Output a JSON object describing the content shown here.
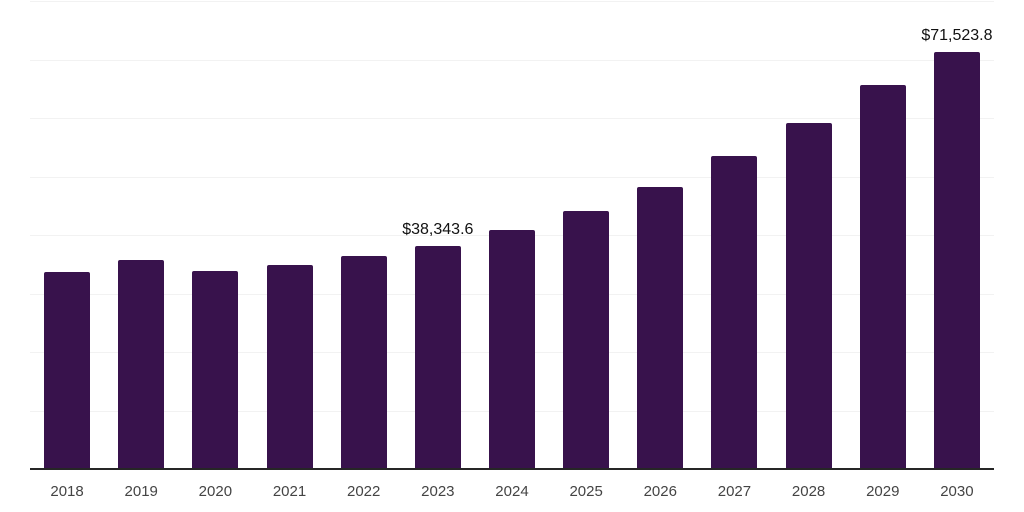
{
  "chart_data": {
    "type": "bar",
    "title": "",
    "xlabel": "",
    "ylabel": "",
    "categories": [
      "2018",
      "2019",
      "2020",
      "2021",
      "2022",
      "2023",
      "2024",
      "2025",
      "2026",
      "2027",
      "2028",
      "2029",
      "2030"
    ],
    "values": [
      33850,
      35900,
      34100,
      35000,
      36600,
      38343.6,
      41000,
      44300,
      48400,
      53700,
      59300,
      65800,
      71523.8
    ],
    "value_labels": [
      "",
      "",
      "",
      "",
      "",
      "$38,343.6",
      "",
      "",
      "",
      "",
      "",
      "",
      "$71,523.8"
    ],
    "ylim": [
      0,
      80000
    ],
    "gridline_interval": 10000,
    "grid": "horizontal",
    "legend_position": "none"
  },
  "colors": {
    "bar": "#38124C",
    "axis_line": "#262626",
    "gridline": "#f2f2f2",
    "tick_label": "#444444",
    "data_label": "#111111",
    "background": "#ffffff"
  }
}
